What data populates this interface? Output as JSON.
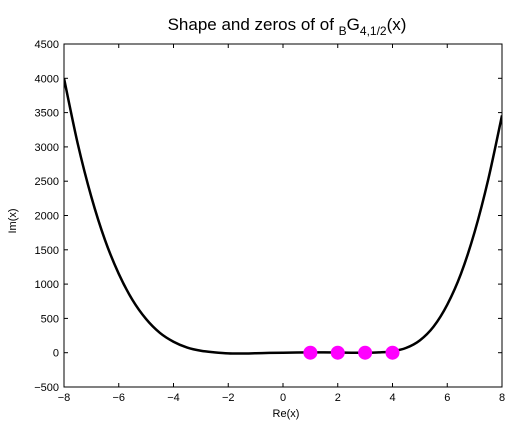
{
  "chart_data": {
    "type": "line",
    "title": {
      "prefix": "Shape and zeros of of ",
      "sub1": "B",
      "base": "G",
      "sub2": "4,1/2",
      "suffix": "(x)"
    },
    "xlabel": "Re(x)",
    "ylabel": "Im(x)",
    "xlim": [
      -8,
      8
    ],
    "ylim": [
      -500,
      4500
    ],
    "xticks": [
      -8,
      -6,
      -4,
      -2,
      0,
      2,
      4,
      6,
      8
    ],
    "yticks": [
      -500,
      0,
      500,
      1000,
      1500,
      2000,
      2500,
      3000,
      3500,
      4000,
      4500
    ],
    "grid": false,
    "series": [
      {
        "kind": "curve",
        "color": "#000000",
        "x": [
          -8,
          -7.5,
          -7,
          -6.5,
          -6,
          -5.5,
          -5,
          -4.5,
          -4,
          -3.5,
          -3,
          -2.5,
          -2,
          -1.5,
          -1,
          -0.5,
          0,
          0.5,
          1,
          1.5,
          2,
          2.5,
          3,
          3.5,
          4,
          4.5,
          5,
          5.5,
          6,
          6.5,
          7,
          7.5,
          8
        ],
        "y": [
          4000,
          3050,
          2270,
          1640,
          1150,
          770,
          490,
          290,
          160,
          75,
          28,
          5,
          -10,
          -12,
          -8,
          -3,
          0,
          2,
          4,
          4,
          2,
          0,
          0,
          5,
          20,
          70,
          180,
          380,
          700,
          1150,
          1760,
          2530,
          3460
        ]
      },
      {
        "kind": "markers",
        "color": "#ff00ff",
        "x": [
          1,
          2,
          3,
          4
        ],
        "y": [
          0,
          0,
          0,
          0
        ]
      }
    ]
  }
}
